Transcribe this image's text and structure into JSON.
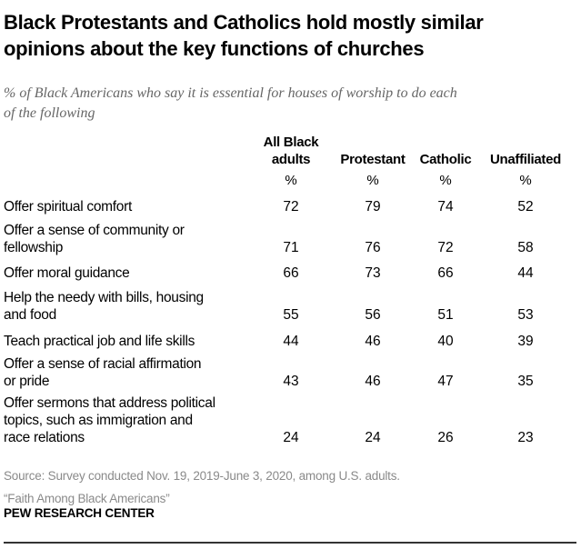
{
  "chart_data": {
    "type": "table",
    "title": "Black Protestants and Catholics hold mostly similar opinions about the key functions of churches",
    "title_lines": [
      "Black Protestants and Catholics hold mostly similar",
      "opinions about the key functions of churches"
    ],
    "subtitle_lines": [
      "% of Black Americans who say it is essential for houses of worship to do each",
      "of the following"
    ],
    "columns": [
      {
        "lines": [
          "All Black",
          "adults"
        ],
        "unit": "%"
      },
      {
        "lines": [
          "Protestant"
        ],
        "unit": "%"
      },
      {
        "lines": [
          "Catholic"
        ],
        "unit": "%"
      },
      {
        "lines": [
          "Unaffiliated"
        ],
        "unit": "%"
      }
    ],
    "rows": [
      {
        "label_lines": [
          "Offer spiritual comfort"
        ],
        "values": [
          72,
          79,
          74,
          52
        ]
      },
      {
        "label_lines": [
          "Offer a sense of community or",
          "fellowship"
        ],
        "values": [
          71,
          76,
          72,
          58
        ]
      },
      {
        "label_lines": [
          "Offer moral guidance"
        ],
        "values": [
          66,
          73,
          66,
          44
        ]
      },
      {
        "label_lines": [
          "Help the needy with bills, housing",
          "and food"
        ],
        "values": [
          55,
          56,
          51,
          53
        ]
      },
      {
        "label_lines": [
          "Teach practical job and life skills"
        ],
        "values": [
          44,
          46,
          40,
          39
        ]
      },
      {
        "label_lines": [
          "Offer a sense of racial affirmation",
          "or pride"
        ],
        "values": [
          43,
          46,
          47,
          35
        ]
      },
      {
        "label_lines": [
          "Offer sermons that address political",
          "topics, such as immigration and",
          "race relations"
        ],
        "values": [
          24,
          24,
          26,
          23
        ]
      }
    ],
    "source_lines": [
      "Source: Survey conducted Nov. 19, 2019-June 3, 2020, among U.S. adults.",
      "“Faith Among Black Americans”"
    ],
    "brand": "PEW RESEARCH CENTER"
  }
}
